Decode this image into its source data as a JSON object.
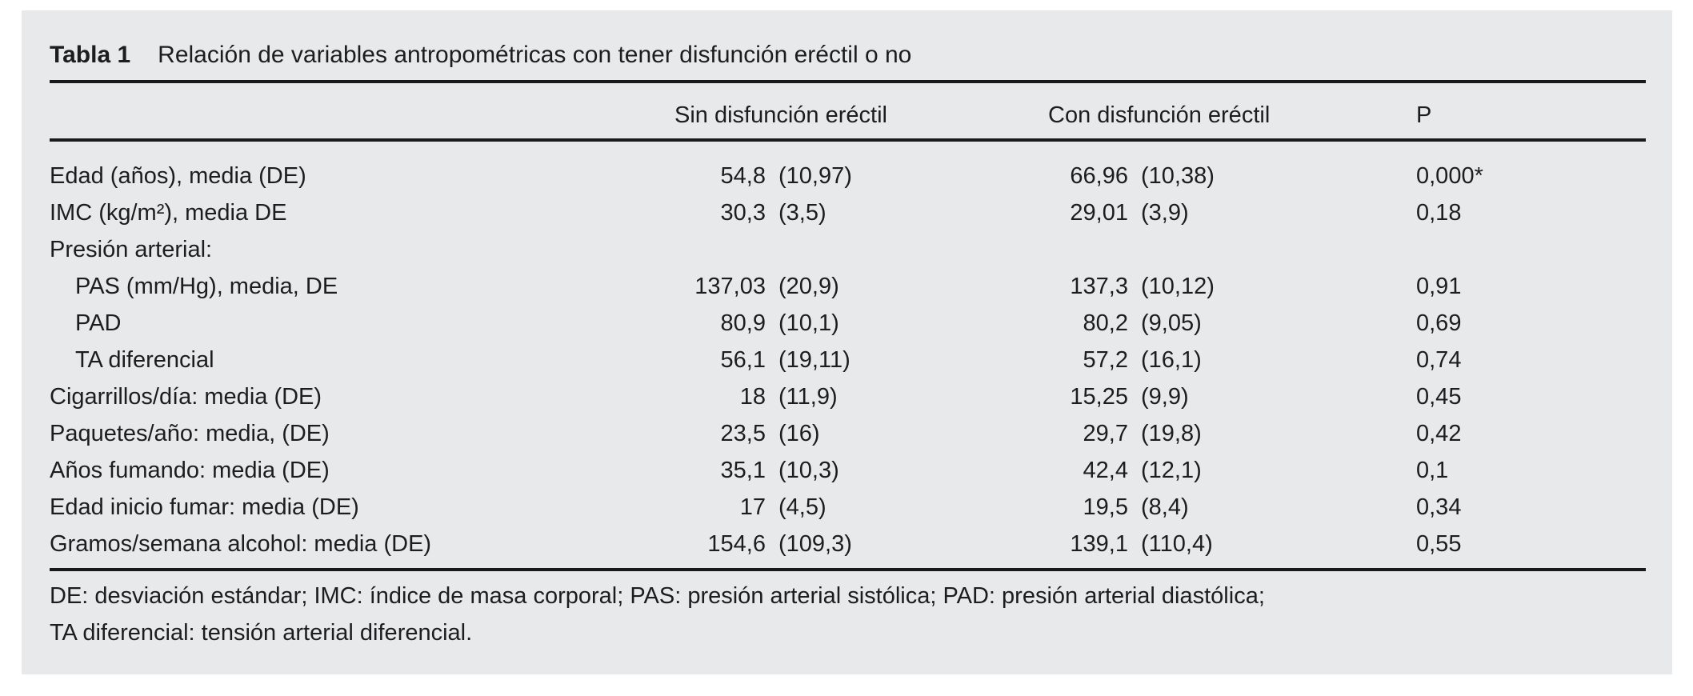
{
  "colors": {
    "panel_bg": "#e8e9ea",
    "text": "#1d1d1f",
    "rule": "#1a1a1a"
  },
  "table": {
    "caption_label": "Tabla 1",
    "caption_title": "Relación de variables antropométricas con tener disfunción eréctil o no",
    "columns": {
      "sin": "Sin disfunción eréctil",
      "con": "Con disfunción eréctil",
      "p": "P"
    },
    "rows": [
      {
        "label": "Edad (años), media (DE)",
        "sin_num": "54,8",
        "sin_sd": "(10,97)",
        "con_num": "66,96",
        "con_sd": "(10,38)",
        "p": "0,000*"
      },
      {
        "label": "IMC (kg/m²), media DE",
        "sin_num": "30,3",
        "sin_sd": "(3,5)",
        "con_num": "29,01",
        "con_sd": "(3,9)",
        "p": "0,18"
      },
      {
        "label": "Presión arterial:",
        "sin_num": "",
        "sin_sd": "",
        "con_num": "",
        "con_sd": "",
        "p": ""
      },
      {
        "label": "PAS (mm/Hg), media, DE",
        "sin_num": "137,03",
        "sin_sd": "(20,9)",
        "con_num": "137,3",
        "con_sd": "(10,12)",
        "p": "0,91"
      },
      {
        "label": "PAD",
        "sin_num": "80,9",
        "sin_sd": "(10,1)",
        "con_num": "80,2",
        "con_sd": "(9,05)",
        "p": "0,69"
      },
      {
        "label": "TA diferencial",
        "sin_num": "56,1",
        "sin_sd": "(19,11)",
        "con_num": "57,2",
        "con_sd": "(16,1)",
        "p": "0,74"
      },
      {
        "label": "Cigarrillos/día: media (DE)",
        "sin_num": "18",
        "sin_sd": "(11,9)",
        "con_num": "15,25",
        "con_sd": "(9,9)",
        "p": "0,45"
      },
      {
        "label": "Paquetes/año: media, (DE)",
        "sin_num": "23,5",
        "sin_sd": "(16)",
        "con_num": "29,7",
        "con_sd": "(19,8)",
        "p": "0,42"
      },
      {
        "label": "Años fumando: media (DE)",
        "sin_num": "35,1",
        "sin_sd": "(10,3)",
        "con_num": "42,4",
        "con_sd": "(12,1)",
        "p": "0,1"
      },
      {
        "label": "Edad inicio fumar: media (DE)",
        "sin_num": "17",
        "sin_sd": "(4,5)",
        "con_num": "19,5",
        "con_sd": "(8,4)",
        "p": "0,34"
      },
      {
        "label": "Gramos/semana alcohol: media (DE)",
        "sin_num": "154,6",
        "sin_sd": "(109,3)",
        "con_num": "139,1",
        "con_sd": "(110,4)",
        "p": "0,55"
      }
    ],
    "footnotes": [
      "DE: desviación estándar; IMC: índice de masa corporal; PAS: presión arterial sistólica; PAD: presión arterial diastólica;",
      "TA diferencial: tensión arterial diferencial."
    ]
  }
}
